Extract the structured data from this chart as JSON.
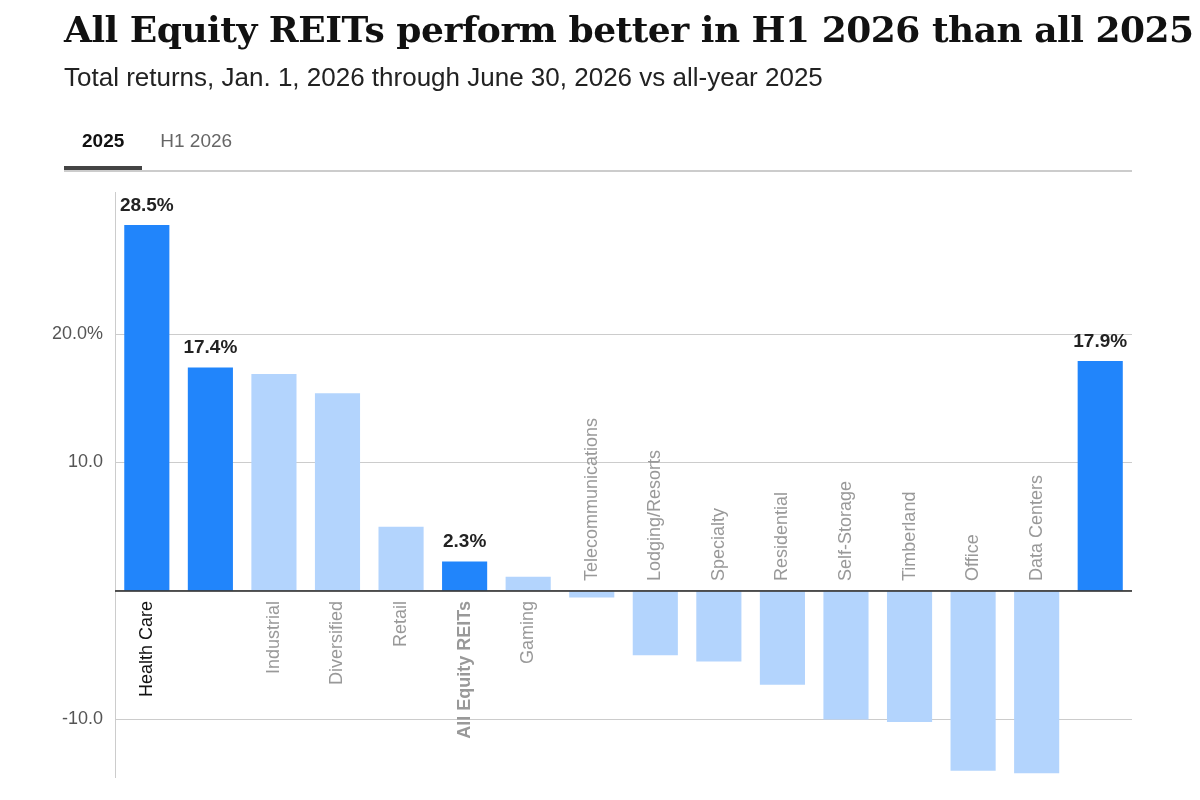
{
  "chart_data": {
    "type": "bar",
    "title": "All Equity REITs perform better in H1 2026 than all 2025",
    "subtitle": "Total returns, Jan. 1, 2026 through June 30, 2026 vs all-year 2025",
    "annotations": [
      "2025",
      "H1 2026"
    ],
    "categories": [
      "Health Care",
      null,
      "Industrial",
      "Diversified",
      "Retail",
      "All Equity REITs",
      "Gaming",
      "Telecommunications",
      "Lodging/Resorts",
      "Specialty",
      "Residential",
      "Self-Storage",
      "Timberland",
      "Office",
      "Data Centers",
      null
    ],
    "values": [
      28.5,
      17.4,
      16.9,
      15.4,
      5.0,
      2.3,
      1.1,
      -0.5,
      -5.0,
      -5.5,
      -7.3,
      -10.0,
      -10.2,
      -14.0,
      -14.2,
      17.9
    ],
    "colors": [
      "#2185fb",
      "#2185fb",
      "#b3d4fd",
      "#b3d4fd",
      "#b3d4fd",
      "#2185fb",
      "#b3d4fd",
      "#b3d4fd",
      "#b3d4fd",
      "#b3d4fd",
      "#b3d4fd",
      "#b3d4fd",
      "#b3d4fd",
      "#b3d4fd",
      "#b3d4fd",
      "#2185fb"
    ],
    "value_labels": [
      "28.5%",
      "17.4%",
      null,
      null,
      null,
      "2.3%",
      null,
      null,
      null,
      null,
      null,
      null,
      null,
      null,
      null,
      "17.9%"
    ],
    "ylim": [
      -14.5,
      31
    ],
    "yticks": [
      {
        "value": -10,
        "label": "-10.0"
      },
      {
        "value": 0,
        "label": null
      },
      {
        "value": 10,
        "label": "10.0"
      },
      {
        "value": 20,
        "label": "20.0%"
      }
    ],
    "grid": "y",
    "legend": false
  }
}
